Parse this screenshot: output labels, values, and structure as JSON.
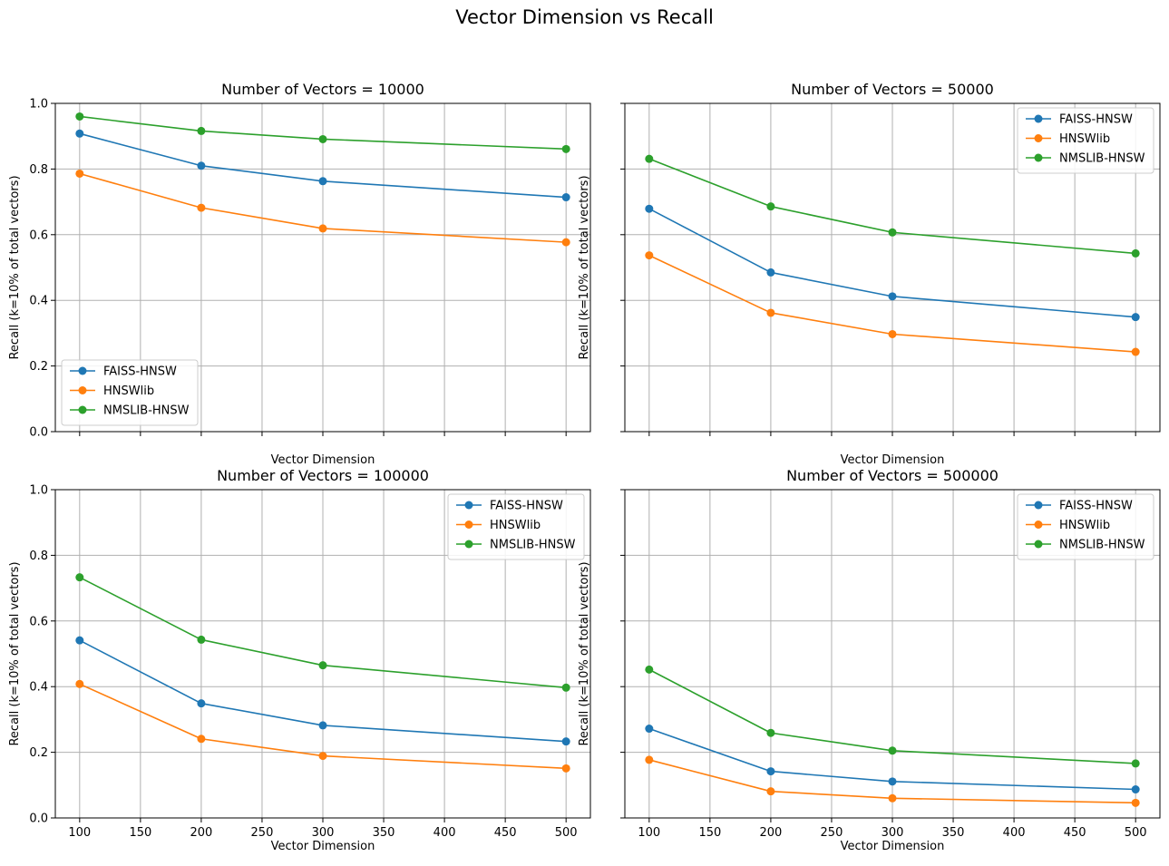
{
  "figure": {
    "title": "Vector Dimension vs Recall"
  },
  "chart_data": [
    {
      "type": "line",
      "title": "Number of Vectors = 10000",
      "xlabel": "Vector Dimension",
      "ylabel": "Recall (k=10% of total vectors)",
      "x": [
        100,
        200,
        300,
        500
      ],
      "xlim": [
        80,
        520
      ],
      "ylim": [
        0,
        1.0
      ],
      "xticks": [
        100,
        150,
        200,
        250,
        300,
        350,
        400,
        450,
        500
      ],
      "yticks": [
        0.0,
        0.2,
        0.4,
        0.6,
        0.8,
        1.0
      ],
      "show_xtick_labels": false,
      "show_ytick_labels": true,
      "grid": true,
      "legend_position": "lower-left",
      "series": [
        {
          "name": "FAISS-HNSW",
          "color": "#1f77b4",
          "values": [
            0.908,
            0.81,
            0.763,
            0.714
          ]
        },
        {
          "name": "HNSWlib",
          "color": "#ff7f0e",
          "values": [
            0.786,
            0.682,
            0.619,
            0.577
          ]
        },
        {
          "name": "NMSLIB-HNSW",
          "color": "#2ca02c",
          "values": [
            0.96,
            0.916,
            0.891,
            0.861
          ]
        }
      ]
    },
    {
      "type": "line",
      "title": "Number of Vectors = 50000",
      "xlabel": "Vector Dimension",
      "ylabel": "Recall (k=10% of total vectors)",
      "x": [
        100,
        200,
        300,
        500
      ],
      "xlim": [
        80,
        520
      ],
      "ylim": [
        0,
        1.0
      ],
      "xticks": [
        100,
        150,
        200,
        250,
        300,
        350,
        400,
        450,
        500
      ],
      "yticks": [
        0.0,
        0.2,
        0.4,
        0.6,
        0.8,
        1.0
      ],
      "show_xtick_labels": false,
      "show_ytick_labels": false,
      "grid": true,
      "legend_position": "upper-right",
      "series": [
        {
          "name": "FAISS-HNSW",
          "color": "#1f77b4",
          "values": [
            0.679,
            0.485,
            0.412,
            0.349
          ]
        },
        {
          "name": "HNSWlib",
          "color": "#ff7f0e",
          "values": [
            0.537,
            0.362,
            0.297,
            0.243
          ]
        },
        {
          "name": "NMSLIB-HNSW",
          "color": "#2ca02c",
          "values": [
            0.831,
            0.686,
            0.607,
            0.543
          ]
        }
      ]
    },
    {
      "type": "line",
      "title": "Number of Vectors = 100000",
      "xlabel": "Vector Dimension",
      "ylabel": "Recall (k=10% of total vectors)",
      "x": [
        100,
        200,
        300,
        500
      ],
      "xlim": [
        80,
        520
      ],
      "ylim": [
        0,
        1.0
      ],
      "xticks": [
        100,
        150,
        200,
        250,
        300,
        350,
        400,
        450,
        500
      ],
      "yticks": [
        0.0,
        0.2,
        0.4,
        0.6,
        0.8,
        1.0
      ],
      "show_xtick_labels": true,
      "show_ytick_labels": true,
      "grid": true,
      "legend_position": "upper-right",
      "series": [
        {
          "name": "FAISS-HNSW",
          "color": "#1f77b4",
          "values": [
            0.541,
            0.349,
            0.282,
            0.233
          ]
        },
        {
          "name": "HNSWlib",
          "color": "#ff7f0e",
          "values": [
            0.408,
            0.241,
            0.189,
            0.151
          ]
        },
        {
          "name": "NMSLIB-HNSW",
          "color": "#2ca02c",
          "values": [
            0.733,
            0.543,
            0.465,
            0.397
          ]
        }
      ]
    },
    {
      "type": "line",
      "title": "Number of Vectors = 500000",
      "xlabel": "Vector Dimension",
      "ylabel": "Recall (k=10% of total vectors)",
      "x": [
        100,
        200,
        300,
        500
      ],
      "xlim": [
        80,
        520
      ],
      "ylim": [
        0,
        1.0
      ],
      "xticks": [
        100,
        150,
        200,
        250,
        300,
        350,
        400,
        450,
        500
      ],
      "yticks": [
        0.0,
        0.2,
        0.4,
        0.6,
        0.8,
        1.0
      ],
      "show_xtick_labels": true,
      "show_ytick_labels": false,
      "grid": true,
      "legend_position": "upper-right",
      "series": [
        {
          "name": "FAISS-HNSW",
          "color": "#1f77b4",
          "values": [
            0.272,
            0.142,
            0.111,
            0.087
          ]
        },
        {
          "name": "HNSWlib",
          "color": "#ff7f0e",
          "values": [
            0.177,
            0.081,
            0.06,
            0.046
          ]
        },
        {
          "name": "NMSLIB-HNSW",
          "color": "#2ca02c",
          "values": [
            0.452,
            0.259,
            0.205,
            0.166
          ]
        }
      ]
    }
  ]
}
